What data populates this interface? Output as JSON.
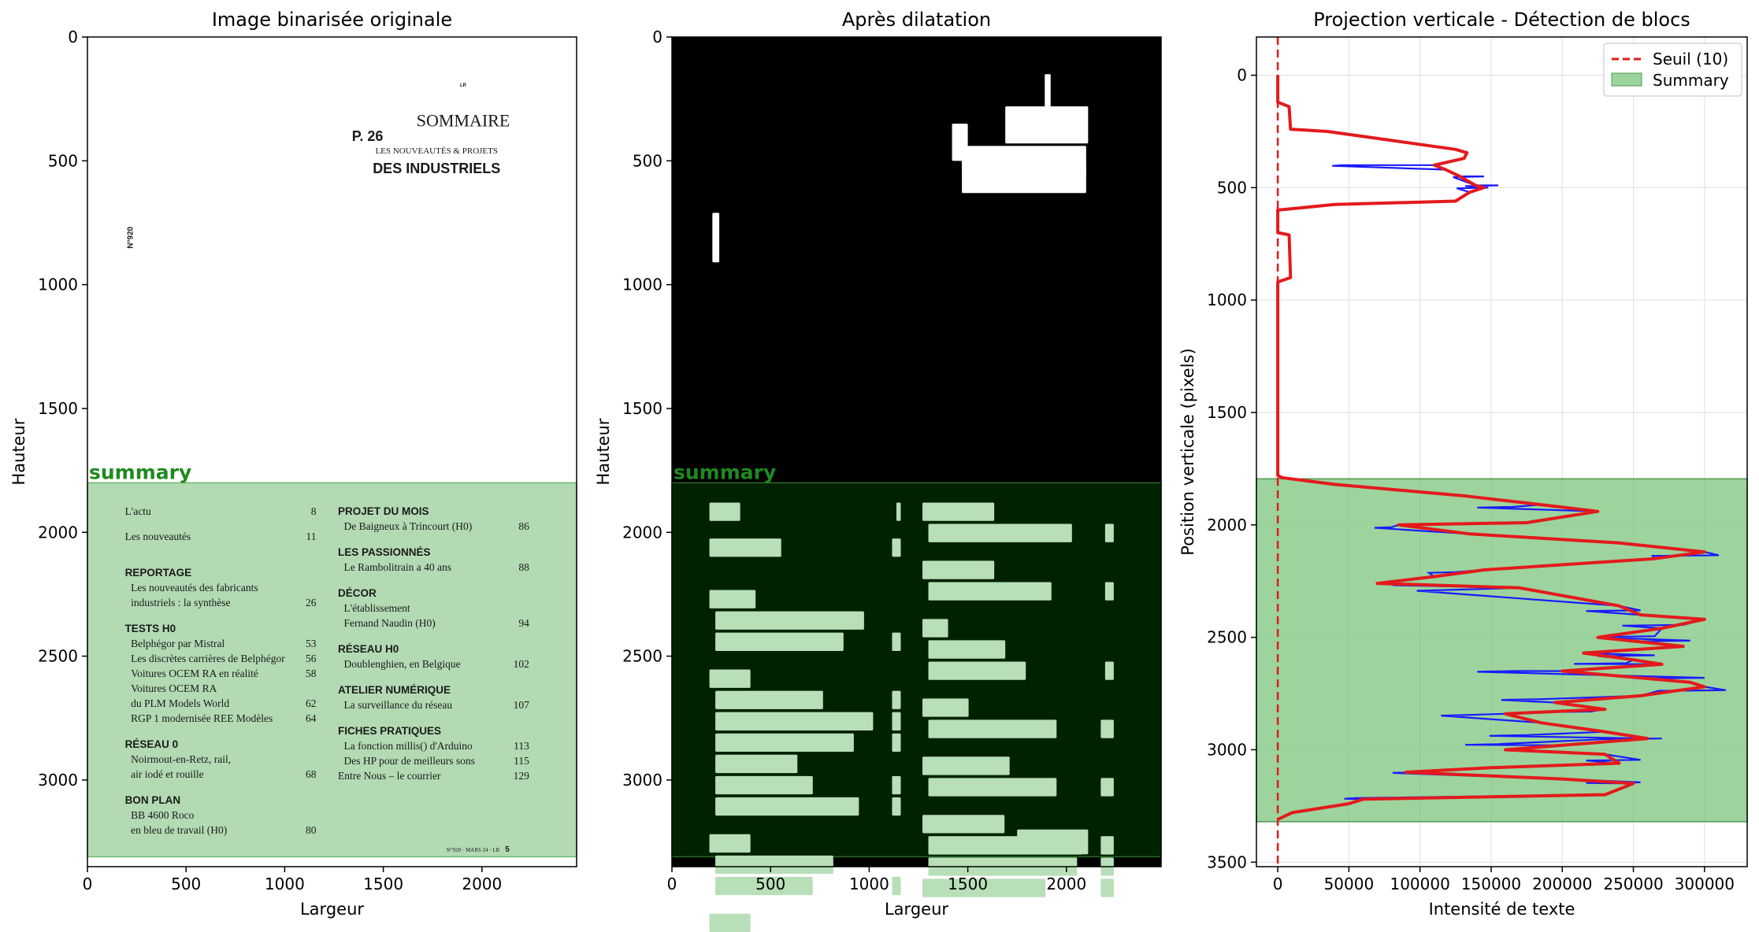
{
  "chart_data": [
    {
      "type": "image",
      "title": "Image binarisée originale",
      "xlabel": "Largeur",
      "ylabel": "Hauteur",
      "xlim": [
        0,
        2480
      ],
      "ylim": [
        3350,
        0
      ],
      "xticks": [
        "0",
        "500",
        "1000",
        "1500",
        "2000"
      ],
      "yticks": [
        "0",
        "500",
        "1000",
        "1500",
        "2000",
        "2500",
        "3000"
      ],
      "region_label": "summary",
      "page": {
        "header_small": "LR",
        "header_page": "P. 26",
        "header_title": "SOMMAIRE",
        "header_sub": "LES NOUVEAUTÉS & PROJETS",
        "header_big": "DES INDUSTRIELS",
        "side_number": "N°920",
        "footer": "N°920 · MARS 24 · LR",
        "footer_page": "5",
        "left_col": [
          {
            "t": "item",
            "text": "L'actu",
            "page": "8"
          },
          {
            "t": "item",
            "text": "Les nouveautés",
            "page": "11"
          },
          {
            "t": "head",
            "text": "REPORTAGE"
          },
          {
            "t": "sub",
            "text": "Les nouveautés des fabricants",
            "page": ""
          },
          {
            "t": "sub",
            "text": "industriels : la synthèse",
            "page": "26"
          },
          {
            "t": "head",
            "text": "TESTS H0"
          },
          {
            "t": "sub",
            "text": "Belphégor par Mistral",
            "page": "53"
          },
          {
            "t": "sub",
            "text": "Les discrètes carrières de Belphégor",
            "page": "56"
          },
          {
            "t": "sub",
            "text": "Voitures OCEM RA en réalité",
            "page": "58"
          },
          {
            "t": "sub",
            "text": "Voitures OCEM RA",
            "page": ""
          },
          {
            "t": "sub",
            "text": "du PLM Models World",
            "page": "62"
          },
          {
            "t": "sub",
            "text": "RGP 1 modernisée REE Modèles",
            "page": "64"
          },
          {
            "t": "head",
            "text": "RÉSEAU 0"
          },
          {
            "t": "sub",
            "text": "Noirmout-en-Retz, rail,",
            "page": ""
          },
          {
            "t": "sub",
            "text": "air iodé et rouille",
            "page": "68"
          },
          {
            "t": "head",
            "text": "BON PLAN"
          },
          {
            "t": "sub",
            "text": "BB 4600 Roco",
            "page": ""
          },
          {
            "t": "sub",
            "text": "en bleu de travail (H0)",
            "page": "80"
          }
        ],
        "right_col": [
          {
            "t": "head",
            "text": "PROJET DU MOIS"
          },
          {
            "t": "sub",
            "text": "De Baigneux à Trincourt (H0)",
            "page": "86"
          },
          {
            "t": "head",
            "text": "LES PASSIONNÉS"
          },
          {
            "t": "sub",
            "text": "Le Rambolitrain a 40 ans",
            "page": "88"
          },
          {
            "t": "head",
            "text": "DÉCOR"
          },
          {
            "t": "sub",
            "text": "L'établissement",
            "page": ""
          },
          {
            "t": "sub",
            "text": "Fernand Naudin (H0)",
            "page": "94"
          },
          {
            "t": "head",
            "text": "RÉSEAU H0"
          },
          {
            "t": "sub",
            "text": "Doublenghien, en Belgique",
            "page": "102"
          },
          {
            "t": "head",
            "text": "ATELIER NUMÉRIQUE"
          },
          {
            "t": "sub",
            "text": "La surveillance du réseau",
            "page": "107"
          },
          {
            "t": "head",
            "text": "FICHES PRATIQUES"
          },
          {
            "t": "sub",
            "text": "La fonction millis() d'Arduino",
            "page": "113"
          },
          {
            "t": "sub",
            "text": "Des HP pour de meilleurs sons",
            "page": "115"
          },
          {
            "t": "item",
            "text": "Entre Nous – le courrier",
            "page": "129"
          }
        ]
      }
    },
    {
      "type": "image",
      "title": "Après dilatation",
      "xlabel": "Largeur",
      "ylabel": "Hauteur",
      "xlim": [
        0,
        2480
      ],
      "ylim": [
        3350,
        0
      ],
      "xticks": [
        "0",
        "500",
        "1000",
        "1500",
        "2000"
      ],
      "yticks": [
        "0",
        "500",
        "1000",
        "1500",
        "2000",
        "2500",
        "3000"
      ],
      "region_label": "summary"
    },
    {
      "type": "line",
      "title": "Projection verticale - Détection de blocs",
      "xlabel": "Intensité de texte",
      "ylabel": "Position verticale (pixels)",
      "xlim": [
        -15000,
        330000
      ],
      "ylim": [
        3520,
        -170
      ],
      "xticks": [
        0,
        50000,
        100000,
        150000,
        200000,
        250000,
        300000
      ],
      "yticks": [
        0,
        500,
        1000,
        1500,
        2000,
        2500,
        3000,
        3500
      ],
      "grid": true,
      "legend_position": "top-right",
      "threshold": {
        "name": "Seuil (10)",
        "value": 10,
        "color": "#e31a1c"
      },
      "region": {
        "name": "Summary",
        "y_start": 1795,
        "y_end": 3320,
        "color": "#7cc57c"
      },
      "smooth_color": "#e31a1c",
      "raw_color": "#1a1aff",
      "smooth": [
        [
          0,
          0
        ],
        [
          0,
          120
        ],
        [
          8000,
          140
        ],
        [
          9000,
          240
        ],
        [
          35000,
          250
        ],
        [
          80000,
          290
        ],
        [
          125000,
          330
        ],
        [
          133000,
          345
        ],
        [
          131000,
          370
        ],
        [
          110000,
          400
        ],
        [
          118000,
          420
        ],
        [
          128000,
          450
        ],
        [
          139000,
          490
        ],
        [
          145000,
          500
        ],
        [
          135000,
          520
        ],
        [
          125000,
          560
        ],
        [
          40000,
          575
        ],
        [
          0,
          600
        ],
        [
          0,
          700
        ],
        [
          8000,
          710
        ],
        [
          9000,
          900
        ],
        [
          0,
          920
        ],
        [
          0,
          1780
        ],
        [
          3000,
          1790
        ],
        [
          40000,
          1820
        ],
        [
          130000,
          1870
        ],
        [
          185000,
          1910
        ],
        [
          225000,
          1940
        ],
        [
          175000,
          1990
        ],
        [
          85000,
          2000
        ],
        [
          135000,
          2040
        ],
        [
          240000,
          2080
        ],
        [
          300000,
          2120
        ],
        [
          265000,
          2150
        ],
        [
          145000,
          2200
        ],
        [
          110000,
          2230
        ],
        [
          70000,
          2260
        ],
        [
          170000,
          2280
        ],
        [
          240000,
          2360
        ],
        [
          255000,
          2400
        ],
        [
          300000,
          2420
        ],
        [
          270000,
          2460
        ],
        [
          225000,
          2500
        ],
        [
          255000,
          2520
        ],
        [
          285000,
          2540
        ],
        [
          215000,
          2570
        ],
        [
          250000,
          2600
        ],
        [
          270000,
          2620
        ],
        [
          200000,
          2650
        ],
        [
          290000,
          2700
        ],
        [
          300000,
          2720
        ],
        [
          255000,
          2760
        ],
        [
          195000,
          2790
        ],
        [
          230000,
          2820
        ],
        [
          160000,
          2840
        ],
        [
          185000,
          2880
        ],
        [
          230000,
          2920
        ],
        [
          260000,
          2950
        ],
        [
          200000,
          2980
        ],
        [
          160000,
          3000
        ],
        [
          230000,
          3020
        ],
        [
          240000,
          3060
        ],
        [
          150000,
          3080
        ],
        [
          90000,
          3100
        ],
        [
          200000,
          3130
        ],
        [
          250000,
          3150
        ],
        [
          230000,
          3200
        ],
        [
          60000,
          3220
        ],
        [
          50000,
          3240
        ],
        [
          10000,
          3280
        ],
        [
          0,
          3310
        ]
      ],
      "raw_spikes": [
        [
          45000,
          400
        ],
        [
          148000,
          500
        ],
        [
          145000,
          450
        ],
        [
          155000,
          490
        ],
        [
          165000,
          1920
        ],
        [
          80000,
          2010
        ],
        [
          310000,
          2135
        ],
        [
          125000,
          2210
        ],
        [
          95000,
          2265
        ],
        [
          115000,
          2290
        ],
        [
          255000,
          2380
        ],
        [
          285000,
          2445
        ],
        [
          265000,
          2495
        ],
        [
          290000,
          2515
        ],
        [
          265000,
          2580
        ],
        [
          245000,
          2615
        ],
        [
          165000,
          2650
        ],
        [
          300000,
          2680
        ],
        [
          315000,
          2735
        ],
        [
          185000,
          2775
        ],
        [
          220000,
          2830
        ],
        [
          135000,
          2845
        ],
        [
          175000,
          2935
        ],
        [
          270000,
          2950
        ],
        [
          155000,
          2975
        ],
        [
          255000,
          3045
        ],
        [
          95000,
          3100
        ],
        [
          255000,
          3145
        ],
        [
          55000,
          3215
        ]
      ]
    }
  ]
}
